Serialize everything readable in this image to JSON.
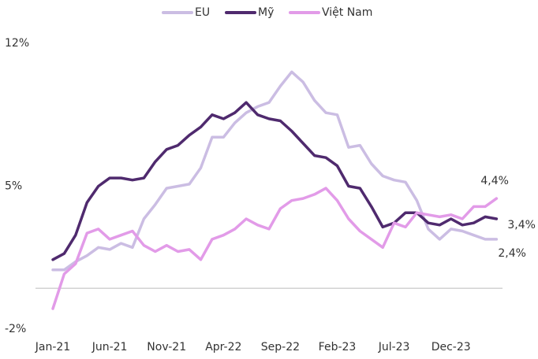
{
  "chart_data": {
    "type": "line",
    "categories": [
      "Jan-21",
      null,
      null,
      null,
      null,
      "Jun-21",
      null,
      null,
      null,
      null,
      "Nov-21",
      null,
      null,
      null,
      null,
      "Apr-22",
      null,
      null,
      null,
      null,
      "Sep-22",
      null,
      null,
      null,
      null,
      "Feb-23",
      null,
      null,
      null,
      null,
      "Jul-23",
      null,
      null,
      null,
      null,
      "Dec-23",
      null,
      null,
      null,
      null
    ],
    "series": [
      {
        "name": "EU",
        "color": "#cbbde3",
        "values": [
          0.9,
          0.9,
          1.3,
          1.6,
          2.0,
          1.9,
          2.2,
          2.0,
          3.4,
          4.1,
          4.9,
          5.0,
          5.1,
          5.9,
          7.4,
          7.4,
          8.1,
          8.6,
          8.9,
          9.1,
          9.9,
          10.6,
          10.1,
          9.2,
          8.6,
          8.5,
          6.9,
          7.0,
          6.1,
          5.5,
          5.3,
          5.2,
          4.3,
          2.9,
          2.4,
          2.9,
          2.8,
          2.6,
          2.4,
          2.4
        ],
        "value_labels": [
          null,
          null,
          null,
          null,
          null,
          null,
          null,
          null,
          null,
          null,
          null,
          null,
          null,
          null,
          null,
          null,
          null,
          null,
          null,
          null,
          null,
          null,
          null,
          null,
          null,
          null,
          null,
          null,
          null,
          null,
          null,
          null,
          null,
          null,
          null,
          null,
          null,
          null,
          null,
          "2,4%"
        ]
      },
      {
        "name": "Mỹ",
        "color": "#4f2a6e",
        "values": [
          1.4,
          1.7,
          2.6,
          4.2,
          5.0,
          5.4,
          5.4,
          5.3,
          5.4,
          6.2,
          6.8,
          7.0,
          7.5,
          7.9,
          8.5,
          8.3,
          8.6,
          9.1,
          8.5,
          8.3,
          8.2,
          7.7,
          7.1,
          6.5,
          6.4,
          6.0,
          5.0,
          4.9,
          4.0,
          3.0,
          3.2,
          3.7,
          3.7,
          3.2,
          3.1,
          3.4,
          3.1,
          3.2,
          3.5,
          3.4
        ],
        "value_labels": [
          null,
          null,
          null,
          null,
          null,
          null,
          null,
          null,
          null,
          null,
          null,
          null,
          null,
          null,
          null,
          null,
          null,
          null,
          null,
          null,
          null,
          null,
          null,
          null,
          null,
          null,
          null,
          null,
          null,
          null,
          null,
          null,
          null,
          null,
          null,
          null,
          null,
          null,
          null,
          "3,4%"
        ]
      },
      {
        "name": "Việt Nam",
        "color": "#e29be8",
        "values": [
          -1.0,
          0.7,
          1.2,
          2.7,
          2.9,
          2.4,
          2.6,
          2.8,
          2.1,
          1.8,
          2.1,
          1.8,
          1.9,
          1.4,
          2.4,
          2.6,
          2.9,
          3.4,
          3.1,
          2.9,
          3.9,
          4.3,
          4.4,
          4.6,
          4.9,
          4.3,
          3.4,
          2.8,
          2.4,
          2.0,
          3.2,
          3.0,
          3.7,
          3.6,
          3.5,
          3.6,
          3.4,
          4.0,
          4.0,
          4.4
        ],
        "value_labels": [
          null,
          null,
          null,
          null,
          null,
          null,
          null,
          null,
          null,
          null,
          null,
          null,
          null,
          null,
          null,
          null,
          null,
          null,
          null,
          null,
          null,
          null,
          null,
          null,
          null,
          null,
          null,
          null,
          null,
          null,
          null,
          null,
          null,
          null,
          null,
          null,
          null,
          null,
          null,
          "4,4%"
        ]
      }
    ],
    "ylim": [
      -2,
      12
    ],
    "yticks": [
      {
        "value": 12,
        "label": "12%"
      },
      {
        "value": 5,
        "label": "5%"
      },
      {
        "value": -2,
        "label": "-2%"
      }
    ],
    "zero_line": true,
    "legend": "top"
  }
}
